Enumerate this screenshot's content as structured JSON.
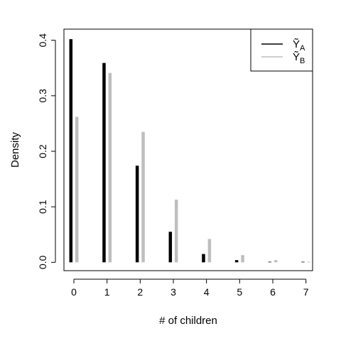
{
  "chart_data": {
    "type": "bar",
    "title": "",
    "xlabel": "# of children",
    "ylabel": "Density",
    "xlim": [
      -0.3,
      7.2
    ],
    "ylim": [
      -0.015,
      0.42
    ],
    "xticks": [
      "0",
      "1",
      "2",
      "3",
      "4",
      "5",
      "6",
      "7"
    ],
    "yticks": [
      "0.0",
      "0.1",
      "0.2",
      "0.3",
      "0.4"
    ],
    "x": [
      0,
      1,
      2,
      3,
      4,
      5,
      6,
      7
    ],
    "legend_position": "top-right",
    "grid": false,
    "series": [
      {
        "name": "Ỹ_A",
        "legend_main": "Ỹ",
        "legend_sub": "A",
        "color": "#000000",
        "offset": -0.09,
        "values": [
          0.402,
          0.359,
          0.174,
          0.055,
          0.015,
          0.004,
          0.001,
          0.001
        ]
      },
      {
        "name": "Ỹ_B",
        "legend_main": "Ỹ",
        "legend_sub": "B",
        "color": "#bebebe",
        "offset": 0.09,
        "values": [
          0.262,
          0.341,
          0.235,
          0.113,
          0.042,
          0.013,
          0.004,
          0.001
        ]
      }
    ]
  }
}
